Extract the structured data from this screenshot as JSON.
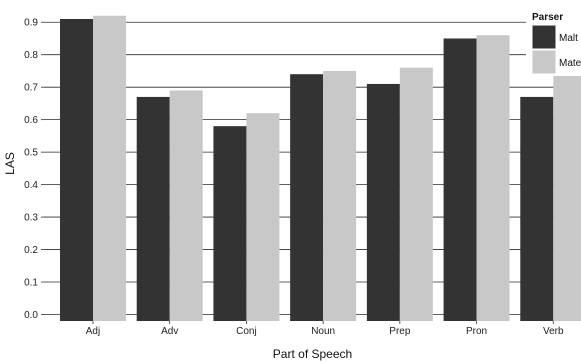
{
  "chart_data": {
    "type": "bar",
    "xlabel": "Part of Speech",
    "ylabel": "LAS",
    "categories": [
      "Adj",
      "Adv",
      "Conj",
      "Noun",
      "Prep",
      "Pron",
      "Verb"
    ],
    "series": [
      {
        "name": "Malt",
        "values": [
          0.91,
          0.67,
          0.58,
          0.74,
          0.71,
          0.85,
          0.67
        ],
        "color": "#333333"
      },
      {
        "name": "Mate",
        "values": [
          0.92,
          0.69,
          0.62,
          0.75,
          0.76,
          0.86,
          0.74
        ],
        "color": "#c8c8c8"
      }
    ],
    "ylim": [
      -0.02,
      0.95
    ],
    "yticks": [
      "0.0",
      "0.1",
      "0.2",
      "0.3",
      "0.4",
      "0.5",
      "0.6",
      "0.7",
      "0.8",
      "0.9"
    ],
    "legend": {
      "title": "Parser",
      "position": "top-right"
    },
    "grid": true,
    "background": "#ffffff",
    "gridColor": "#2b2b2b"
  }
}
